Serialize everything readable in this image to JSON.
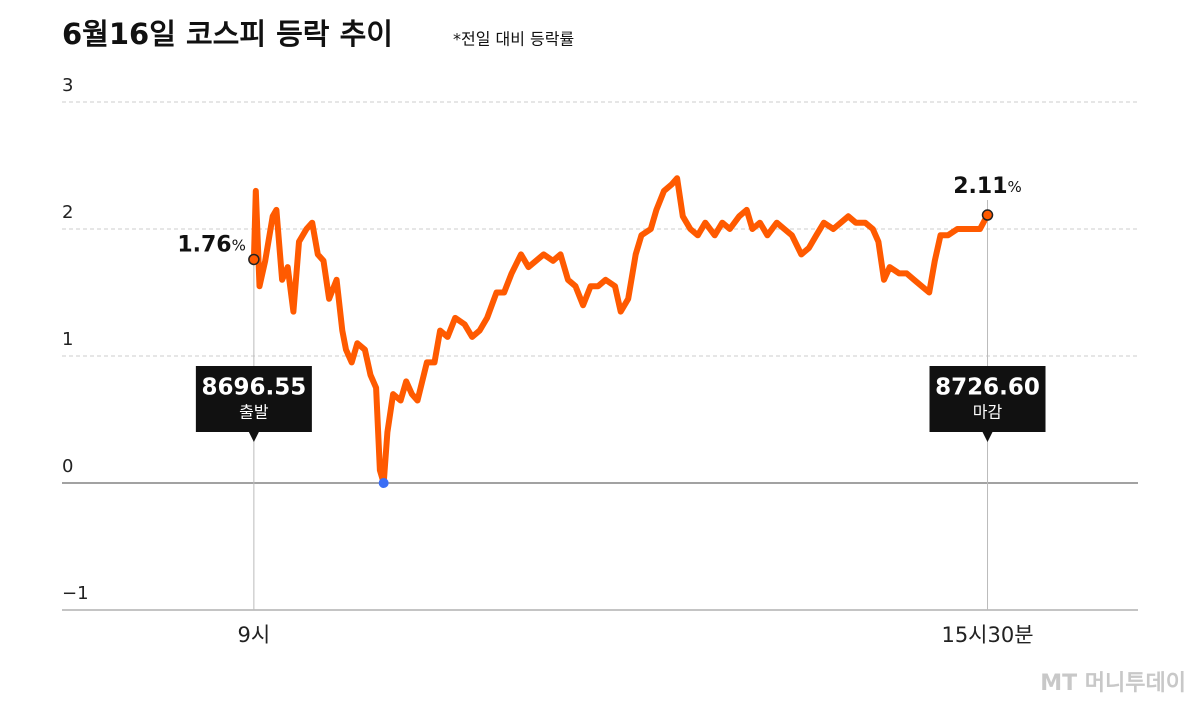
{
  "chart_data": {
    "type": "line",
    "title": "6월16일 코스피 등락 추이",
    "subtitle": "*전일 대비 등락률",
    "x": [
      0,
      1,
      3,
      6,
      10,
      12,
      15,
      18,
      21,
      24,
      28,
      31,
      34,
      37,
      40,
      44,
      47,
      49,
      52,
      55,
      59,
      62,
      65,
      67,
      69,
      71,
      74,
      78,
      81,
      84,
      87,
      92,
      96,
      99,
      103,
      107,
      112,
      116,
      120,
      124,
      129,
      133,
      137,
      142,
      146,
      150,
      154,
      159,
      163,
      167,
      171,
      175,
      179,
      183,
      187,
      192,
      195,
      199,
      203,
      206,
      211,
      214,
      218,
      222,
      225,
      228,
      232,
      236,
      240,
      245,
      249,
      253,
      258,
      262,
      265,
      269,
      273,
      278,
      282,
      286,
      291,
      295,
      299,
      303,
      308,
      312,
      316,
      320,
      325,
      329,
      332,
      335,
      338,
      343,
      347,
      351,
      355,
      359,
      362,
      365,
      369,
      374,
      378,
      382,
      386,
      390
    ],
    "series": [
      {
        "name": "코스피",
        "color": "#ff5a00",
        "values": [
          1.76,
          2.3,
          1.55,
          1.75,
          2.1,
          2.15,
          1.6,
          1.7,
          1.35,
          1.9,
          2.0,
          2.05,
          1.8,
          1.75,
          1.45,
          1.6,
          1.2,
          1.05,
          0.95,
          1.1,
          1.05,
          0.85,
          0.75,
          0.1,
          0.0,
          0.4,
          0.7,
          0.65,
          0.8,
          0.7,
          0.65,
          0.95,
          0.95,
          1.2,
          1.15,
          1.3,
          1.25,
          1.15,
          1.2,
          1.3,
          1.5,
          1.5,
          1.65,
          1.8,
          1.7,
          1.75,
          1.8,
          1.75,
          1.8,
          1.6,
          1.55,
          1.4,
          1.55,
          1.55,
          1.6,
          1.55,
          1.35,
          1.45,
          1.8,
          1.95,
          2.0,
          2.15,
          2.3,
          2.35,
          2.4,
          2.1,
          2.0,
          1.95,
          2.05,
          1.95,
          2.05,
          2.0,
          2.1,
          2.15,
          2.0,
          2.05,
          1.95,
          2.05,
          2.0,
          1.95,
          1.8,
          1.85,
          1.95,
          2.05,
          2.0,
          2.05,
          2.1,
          2.05,
          2.05,
          2.0,
          1.9,
          1.6,
          1.7,
          1.65,
          1.65,
          1.6,
          1.55,
          1.5,
          1.75,
          1.95,
          1.95,
          2.0,
          2.0,
          2.0,
          2.0,
          2.11
        ]
      }
    ],
    "min_marker_color": "#3b6ef5",
    "xlim": [
      -102,
      470
    ],
    "xticks": [
      {
        "value": 0,
        "label": "9시"
      },
      {
        "value": 390,
        "label": "15시30분"
      }
    ],
    "ylim": [
      -1,
      3
    ],
    "yticks": [
      {
        "value": -1,
        "label": "−1"
      },
      0,
      1,
      2,
      3
    ],
    "grid": true,
    "point_labels": [
      {
        "label": "1.76",
        "unit": "%"
      },
      {
        "label": "2.11",
        "unit": "%"
      }
    ],
    "index_boxes": [
      {
        "value": "8696.55",
        "label": "출발"
      },
      {
        "value": "8726.60",
        "label": "마감"
      }
    ],
    "watermark": "MT 머니투데이"
  }
}
